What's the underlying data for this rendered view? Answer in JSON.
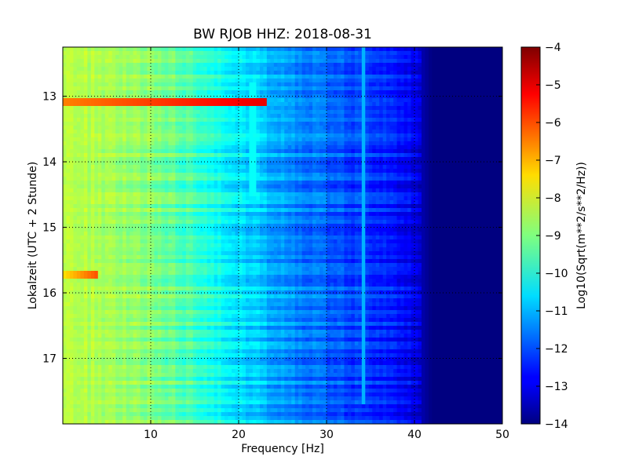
{
  "chart_data": {
    "type": "heatmap",
    "title": "BW RJOB HHZ: 2018-08-31",
    "xlabel": "Frequency [Hz]",
    "ylabel": "Lokalzeit (UTC + 2 Stunde)",
    "xlim": [
      0,
      50
    ],
    "ylim": [
      12.25,
      18.0
    ],
    "y_inverted": true,
    "xticks": [
      10,
      20,
      30,
      40,
      50
    ],
    "xtick_labels": [
      "10",
      "20",
      "30",
      "40",
      "50"
    ],
    "yticks": [
      13,
      14,
      15,
      16,
      17
    ],
    "ytick_labels": [
      "13",
      "14",
      "15",
      "16",
      "17"
    ],
    "grid": true,
    "colorbar": {
      "label": "Log10(Sqrt(m**2/s**2/Hz))",
      "colormap": "jet",
      "range": [
        -14,
        -4
      ],
      "ticks": [
        -4,
        -5,
        -6,
        -7,
        -8,
        -9,
        -10,
        -11,
        -12,
        -13,
        -14
      ],
      "tick_labels": [
        "−4",
        "−5",
        "−6",
        "−7",
        "−8",
        "−9",
        "−10",
        "−11",
        "−12",
        "−13",
        "−14"
      ]
    },
    "spectrum_profile": {
      "frequency_hz": [
        0,
        5,
        10,
        15,
        18,
        20,
        24,
        28,
        32,
        36,
        38,
        40,
        41,
        42,
        50
      ],
      "log_amplitude": [
        -8.4,
        -8.6,
        -8.9,
        -9.6,
        -10.1,
        -10.5,
        -11.1,
        -11.6,
        -12.0,
        -12.4,
        -12.6,
        -12.9,
        -13.6,
        -14.0,
        -14.0
      ]
    },
    "features": [
      {
        "type": "horizontal_band",
        "time": 13.1,
        "freq_range": [
          0,
          23
        ],
        "log_amplitude": -6.5
      },
      {
        "type": "horizontal_band",
        "time": 15.73,
        "freq_range": [
          0,
          4
        ],
        "log_amplitude": -7.5
      },
      {
        "type": "vertical_line",
        "freq": 21.5,
        "time_range": [
          12.8,
          14.5
        ],
        "log_amplitude": -10.2
      },
      {
        "type": "vertical_line",
        "freq": 34.2,
        "time_range": [
          12.25,
          17.7
        ],
        "log_amplitude": -11.0
      }
    ]
  }
}
